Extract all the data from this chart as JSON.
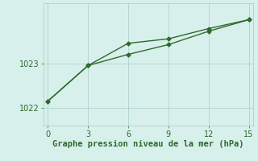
{
  "line1_x": [
    0,
    3,
    6,
    9,
    12,
    15
  ],
  "line1_y": [
    1022.15,
    1022.95,
    1023.45,
    1023.55,
    1023.78,
    1023.98
  ],
  "line2_x": [
    0,
    3,
    6,
    9,
    12,
    15
  ],
  "line2_y": [
    1022.15,
    1022.95,
    1023.2,
    1023.42,
    1023.72,
    1023.98
  ],
  "line_color": "#2d6a2d",
  "marker": "D",
  "marker_size": 2.5,
  "line_width": 1.0,
  "bg_color": "#d8f0ec",
  "grid_color": "#a8ccc8",
  "xlabel": "Graphe pression niveau de la mer (hPa)",
  "xlabel_color": "#2d6a2d",
  "xlabel_fontsize": 7.5,
  "tick_color": "#2d6a2d",
  "tick_fontsize": 7,
  "xlim": [
    -0.3,
    15.3
  ],
  "ylim": [
    1021.6,
    1024.35
  ],
  "xticks": [
    0,
    3,
    6,
    9,
    12,
    15
  ],
  "yticks": [
    1022,
    1023
  ]
}
